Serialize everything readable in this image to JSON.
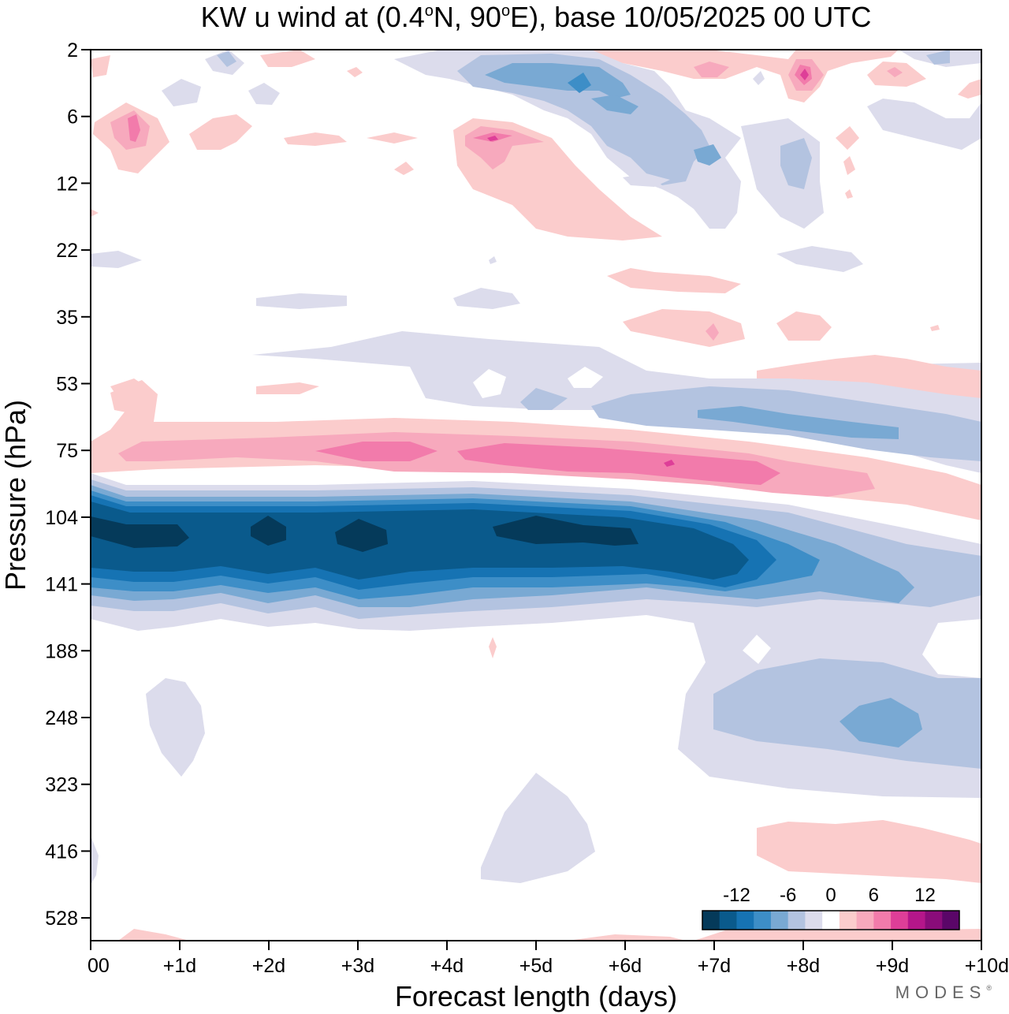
{
  "chart_data": {
    "type": "contour",
    "title_prefix": "KW u wind at (0.4",
    "title_deg": "o",
    "title_mid": "N, 90",
    "title_deg2": "o",
    "title_suffix": "E),  base 10/05/2025  00 UTC",
    "xlabel": "Forecast length (days)",
    "ylabel": "Pressure (hPa)",
    "x_ticks": [
      "00",
      "+1d",
      "+2d",
      "+3d",
      "+4d",
      "+5d",
      "+6d",
      "+7d",
      "+8d",
      "+9d",
      "+10d"
    ],
    "xlim": [
      0,
      10
    ],
    "y_ticks": [
      "2",
      "6",
      "12",
      "22",
      "35",
      "53",
      "75",
      "104",
      "141",
      "188",
      "248",
      "323",
      "416",
      "528"
    ],
    "grid": false,
    "colorbar": {
      "labels": [
        "-12",
        "-6",
        "0",
        "6",
        "12"
      ],
      "levels": [
        -14,
        -12,
        -10,
        -8,
        -6,
        -4,
        -2,
        2,
        4,
        6,
        8,
        10,
        12,
        14
      ],
      "colors": [
        "#053a5a",
        "#0a5a8c",
        "#1673b3",
        "#3d8ec7",
        "#79a9d3",
        "#b3c3e0",
        "#dcdcec",
        "#ffffff",
        "#fbcccc",
        "#f7a9bd",
        "#f27bab",
        "#de3e98",
        "#b5168a",
        "#8a0c7a",
        "#5a0668"
      ]
    },
    "features": [
      {
        "name": "jet-core-easterly",
        "days": [
          0.0,
          0.5,
          1.0,
          1.5,
          2.0,
          2.5,
          3.0,
          3.5,
          4.0,
          4.5,
          5.0,
          5.5,
          6.0,
          6.5,
          7.0,
          7.5,
          8.0,
          8.5,
          9.0,
          9.5,
          10.0
        ],
        "value": [
          -15,
          -15,
          -14,
          -14,
          -15,
          -14,
          -15,
          -14,
          -14,
          -14,
          -15,
          -15,
          -14,
          -14,
          -13,
          -11,
          -9,
          -8,
          -7,
          -5,
          -4
        ]
      },
      {
        "name": "westerly-band-75hPa",
        "days": [
          0,
          1,
          2,
          3,
          4,
          5,
          6,
          7,
          8,
          9,
          10
        ],
        "value": [
          4,
          5,
          5,
          7,
          6,
          7,
          7,
          6,
          4,
          3,
          2
        ]
      }
    ],
    "colorbar_layout": "bottom-right inside plot"
  },
  "branding": {
    "logo_text": "MODES",
    "logo_mark": "®"
  }
}
